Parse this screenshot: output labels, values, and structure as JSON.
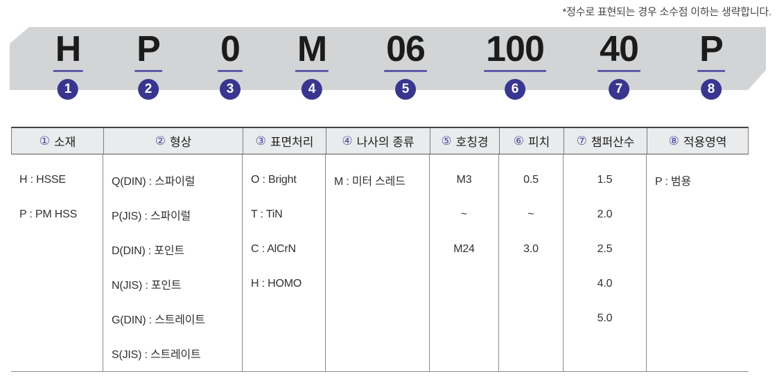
{
  "note": "*정수로 표현되는 경우 소수점 이하는 생략합니다.",
  "banner": {
    "codes": [
      {
        "char": "H",
        "num": "1"
      },
      {
        "char": "P",
        "num": "2"
      },
      {
        "char": "0",
        "num": "3"
      },
      {
        "char": "M",
        "num": "4"
      },
      {
        "char": "06",
        "num": "5"
      },
      {
        "char": "100",
        "num": "6"
      },
      {
        "char": "40",
        "num": "7"
      },
      {
        "char": "P",
        "num": "8"
      }
    ]
  },
  "table": {
    "columns": [
      {
        "num": "①",
        "label": "소재",
        "align": "left",
        "items": [
          "H : HSSE",
          "P : PM HSS"
        ]
      },
      {
        "num": "②",
        "label": "형상",
        "align": "left",
        "items": [
          "Q(DIN) : 스파이럴",
          "P(JIS) : 스파이럴",
          "D(DIN) : 포인트",
          "N(JIS) : 포인트",
          "G(DIN) : 스트레이트",
          "S(JIS) : 스트레이트"
        ]
      },
      {
        "num": "③",
        "label": "표면처리",
        "align": "left",
        "items": [
          "O : Bright",
          "T : TiN",
          "C : AlCrN",
          "H : HOMO"
        ]
      },
      {
        "num": "④",
        "label": "나사의 종류",
        "align": "left",
        "items": [
          "M : 미터 스레드"
        ]
      },
      {
        "num": "⑤",
        "label": "호칭경",
        "align": "center",
        "items": [
          "M3",
          "~",
          "M24"
        ]
      },
      {
        "num": "⑥",
        "label": "피치",
        "align": "center",
        "items": [
          "0.5",
          "~",
          "3.0"
        ]
      },
      {
        "num": "⑦",
        "label": "챔퍼산수",
        "align": "center",
        "items": [
          "1.5",
          "2.0",
          "2.5",
          "4.0",
          "5.0"
        ]
      },
      {
        "num": "⑧",
        "label": "적용영역",
        "align": "left",
        "items": [
          "P : 범용"
        ]
      }
    ]
  },
  "colors": {
    "banner_bg": "#d2d4d6",
    "badge_indigo": "#38368f",
    "underline_purple": "#5e59a7",
    "header_number_blue": "#4a47a3"
  }
}
